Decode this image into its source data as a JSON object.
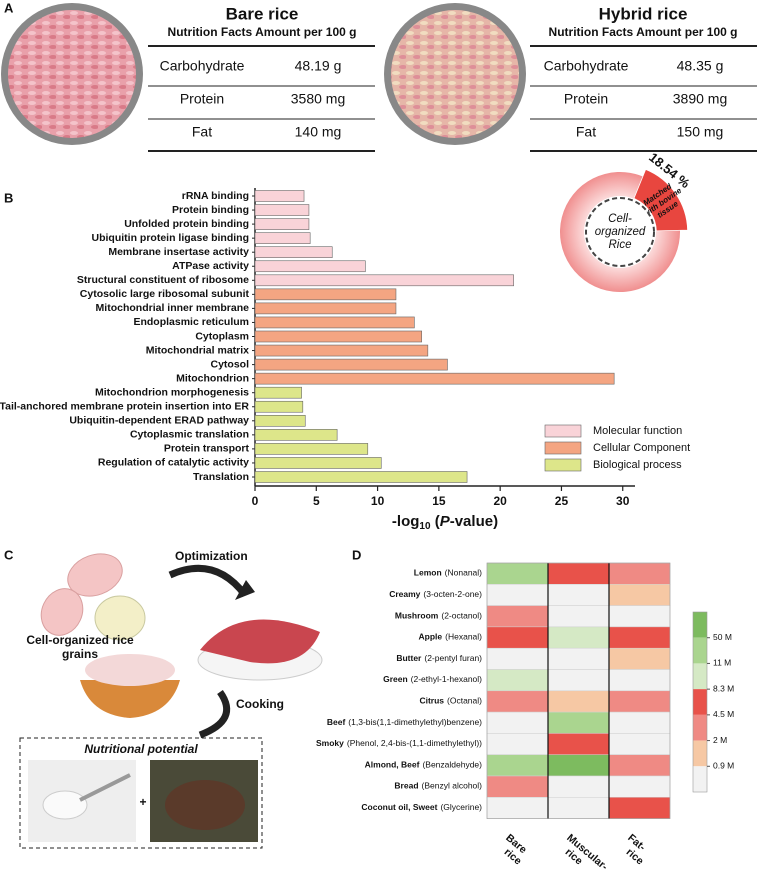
{
  "panel_labels": [
    "A",
    "B",
    "C",
    "D"
  ],
  "nutrition_tables": [
    {
      "title": "Bare rice",
      "subtitle": "Nutrition Facts Amount per 100 g",
      "rows": [
        [
          "Carbohydrate",
          "48.19 g"
        ],
        [
          "Protein",
          "3580 mg"
        ],
        [
          "Fat",
          "140 mg"
        ]
      ]
    },
    {
      "title": "Hybrid rice",
      "subtitle": "Nutrition Facts Amount per 100 g",
      "rows": [
        [
          "Carbohydrate",
          "48.35 g"
        ],
        [
          "Protein",
          "3890 mg"
        ],
        [
          "Fat",
          "150 mg"
        ]
      ]
    }
  ],
  "chart_data": [
    {
      "type": "bar",
      "orientation": "horizontal",
      "categories": [
        "rRNA binding",
        "Protein binding",
        "Unfolded protein binding",
        "Ubiquitin protein ligase binding",
        "Membrane insertase activity",
        "ATPase activity",
        "Structural constituent of ribosome",
        "Cytosolic large ribosomal subunit",
        "Mitochondrial inner membrane",
        "Endoplasmic reticulum",
        "Cytoplasm",
        "Mitochondrial matrix",
        "Cytosol",
        "Mitochondrion",
        "Mitochondrion morphogenesis",
        "Tail-anchored membrane protein insertion into ER",
        "Ubiquitin-dependent ERAD pathway",
        "Cytoplasmic translation",
        "Protein transport",
        "Regulation of catalytic activity",
        "Translation"
      ],
      "series": [
        {
          "name": "Molecular function",
          "color": "#f9d3d8",
          "values": [
            4.0,
            4.4,
            4.4,
            4.5,
            6.3,
            9.0,
            21.1,
            null,
            null,
            null,
            null,
            null,
            null,
            null,
            null,
            null,
            null,
            null,
            null,
            null,
            null
          ]
        },
        {
          "name": "Cellular Component",
          "color": "#f4a582",
          "values": [
            null,
            null,
            null,
            null,
            null,
            null,
            null,
            11.5,
            11.5,
            13.0,
            13.6,
            14.1,
            15.7,
            29.3,
            null,
            null,
            null,
            null,
            null,
            null,
            null
          ]
        },
        {
          "name": "Biological process",
          "color": "#dde68a",
          "values": [
            null,
            null,
            null,
            null,
            null,
            null,
            null,
            null,
            null,
            null,
            null,
            null,
            null,
            null,
            3.8,
            3.9,
            4.1,
            6.7,
            9.2,
            10.3,
            17.3
          ]
        }
      ],
      "xlim": [
        0,
        31
      ],
      "xticks": [
        0,
        5,
        10,
        15,
        20,
        25,
        30
      ],
      "x_label": [
        "-log",
        "10",
        " (",
        "P",
        "-value)"
      ]
    },
    {
      "type": "donut",
      "values": [
        18.54,
        81.46
      ],
      "value_labels": [
        "18.54 %",
        null
      ],
      "slice_labels": [
        [
          "Matched",
          "with bovine",
          "tissue"
        ],
        null
      ],
      "colors": [
        "#e8463f",
        "#f4a3a3"
      ],
      "center_label": [
        "Cell-",
        "organized",
        "Rice"
      ]
    },
    {
      "type": "heatmap",
      "rows": [
        {
          "name": "Lemon",
          "compound": "(Nonanal)"
        },
        {
          "name": "Creamy",
          "compound": "(3-octen-2-one)"
        },
        {
          "name": "Mushroom",
          "compound": "(2-octanol)"
        },
        {
          "name": "Apple",
          "compound": "(Hexanal)"
        },
        {
          "name": "Butter",
          "compound": "(2-pentyl furan)"
        },
        {
          "name": "Green",
          "compound": "(2-ethyl-1-hexanol)"
        },
        {
          "name": "Citrus",
          "compound": "(Octanal)"
        },
        {
          "name": "Beef",
          "compound": "(1,3-bis(1,1-dimethylethyl)benzene)"
        },
        {
          "name": "Smoky",
          "compound": "(Phenol, 2,4-bis-(1,1-dimethylethyl))"
        },
        {
          "name": "Almond, Beef",
          "compound": "(Benzaldehyde)"
        },
        {
          "name": "Bread",
          "compound": "(Benzyl alcohol)"
        },
        {
          "name": "Coconut oil, Sweet",
          "compound": "(Glycerine)"
        }
      ],
      "columns": [
        [
          "Bare",
          "rice"
        ],
        [
          "Muscular-",
          "rice"
        ],
        [
          "Fat-",
          "rice"
        ]
      ],
      "cells": [
        [
          "#aad58f",
          "#e8524a",
          "#ef8a84"
        ],
        [
          "#f2f2f2",
          "#f2f2f2",
          "#f6c8a4"
        ],
        [
          "#ef8a84",
          "#f2f2f2",
          "#f2f2f2"
        ],
        [
          "#e8524a",
          "#d5e9c5",
          "#e8524a"
        ],
        [
          "#f2f2f2",
          "#f2f2f2",
          "#f6c8a4"
        ],
        [
          "#d5e9c5",
          "#f2f2f2",
          "#f2f2f2"
        ],
        [
          "#ef8a84",
          "#f6c8a4",
          "#ef8a84"
        ],
        [
          "#f2f2f2",
          "#aad58f",
          "#f2f2f2"
        ],
        [
          "#f2f2f2",
          "#e8524a",
          "#f2f2f2"
        ],
        [
          "#aad58f",
          "#7dbb5f",
          "#ef8a84"
        ],
        [
          "#ef8a84",
          "#f2f2f2",
          "#f2f2f2"
        ],
        [
          "#f2f2f2",
          "#f2f2f2",
          "#e8524a"
        ]
      ],
      "colorbar": {
        "colors": [
          "#7dbb5f",
          "#aad58f",
          "#d5e9c5",
          "#e8524a",
          "#ef8a84",
          "#f6c8a4",
          "#f2f2f2"
        ],
        "ticks": [
          "50 M",
          "11 M",
          "8.3 M",
          "4.5 M",
          "2 M",
          "0.9 M"
        ]
      }
    }
  ],
  "illustration": {
    "optimization": "Optimization",
    "grains_label": [
      "Cell-organized rice",
      "grains"
    ],
    "cooking": "Cooking",
    "nutrition_title": "Nutritional potential",
    "plus": "+"
  }
}
